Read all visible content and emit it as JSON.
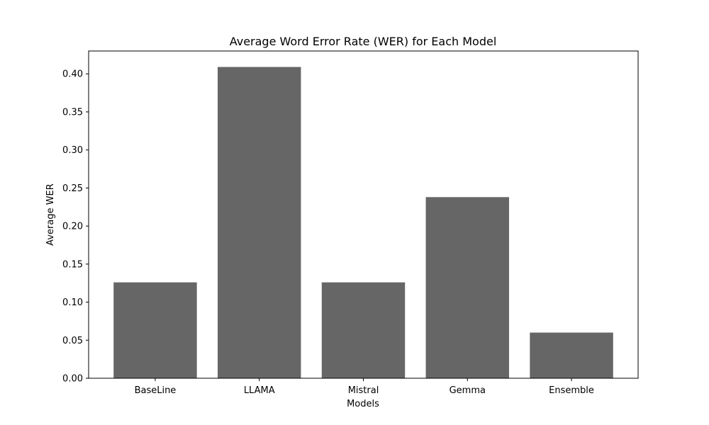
{
  "chart_data": {
    "type": "bar",
    "title": "Average Word Error Rate (WER) for Each Model",
    "xlabel": "Models",
    "ylabel": "Average WER",
    "categories": [
      "BaseLine",
      "LLAMA",
      "Mistral",
      "Gemma",
      "Ensemble"
    ],
    "values": [
      0.126,
      0.409,
      0.126,
      0.238,
      0.06
    ],
    "ylim": [
      0,
      0.43
    ],
    "yticks": [
      0.0,
      0.05,
      0.1,
      0.15,
      0.2,
      0.25,
      0.3,
      0.35,
      0.4
    ],
    "ytick_labels": [
      "0.00",
      "0.05",
      "0.10",
      "0.15",
      "0.20",
      "0.25",
      "0.30",
      "0.35",
      "0.40"
    ],
    "grid": false,
    "bar_color": "#666666"
  }
}
